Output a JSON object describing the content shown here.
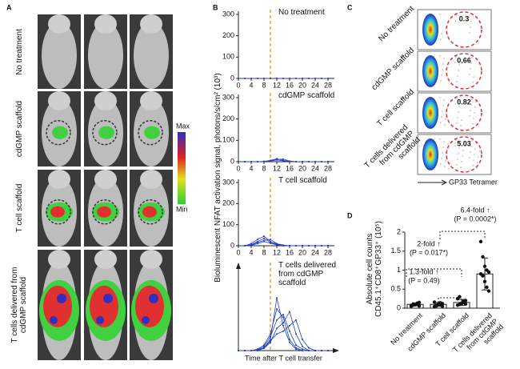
{
  "panel_labels": [
    "A",
    "B",
    "C",
    "D"
  ],
  "panel_a": {
    "rows": [
      "No treatment",
      "cdGMP scaffold",
      "T cell scaffold",
      "T cells delivered from cdGMP scaffold"
    ],
    "scale_max": "Max",
    "scale_min": "Min"
  },
  "panel_b": {
    "ylabel": "Bioluminescent NFAT activation signal, photons/s/cm² (10³)",
    "xlabel": "Time after T cell transfer"
  },
  "panel_c": {
    "rows": [
      "No treatment",
      "cdGMP scaffold",
      "T cell scaffold",
      "T cells delivered from cdGMP scaffold"
    ],
    "values": [
      "0.3",
      "0.66",
      "0.82",
      "5.03"
    ],
    "xlabel": "GP33 Tetramer"
  },
  "chart_data": [
    {
      "type": "line",
      "title": "No treatment",
      "x": [
        0,
        2,
        4,
        6,
        8,
        10,
        12,
        14,
        16,
        18,
        20,
        22,
        24,
        26,
        28
      ],
      "series": [
        {
          "color": "#2040c0",
          "values": [
            0,
            0,
            0,
            0,
            0,
            0,
            0,
            0,
            0,
            0,
            0,
            0,
            0,
            0,
            0
          ]
        },
        {
          "color": "#2040c0",
          "values": [
            0,
            0,
            0,
            0,
            0,
            0,
            1,
            0,
            0,
            0,
            0,
            0,
            0,
            0,
            0
          ]
        }
      ],
      "xlim": [
        0,
        30
      ],
      "ylim": [
        0,
        300
      ],
      "xticks": [
        0,
        4,
        8,
        12,
        16,
        20,
        24,
        28
      ],
      "yticks": [
        0,
        100,
        200,
        300
      ],
      "vline": 10,
      "vline_color": "#f0a030"
    },
    {
      "type": "line",
      "title": "cdGMP scaffold",
      "x": [
        0,
        2,
        4,
        6,
        8,
        10,
        12,
        14,
        16,
        18,
        20,
        22,
        24,
        26,
        28
      ],
      "series": [
        {
          "color": "#2040c0",
          "values": [
            0,
            0,
            0,
            0,
            0,
            3,
            8,
            4,
            1,
            0,
            0,
            0,
            0,
            0,
            0
          ]
        },
        {
          "color": "#2040c0",
          "values": [
            0,
            0,
            0,
            0,
            2,
            6,
            14,
            6,
            2,
            0,
            0,
            0,
            0,
            0,
            0
          ]
        },
        {
          "color": "#2040c0",
          "values": [
            0,
            0,
            0,
            0,
            0,
            4,
            10,
            12,
            3,
            0,
            0,
            0,
            0,
            0,
            0
          ]
        }
      ],
      "xlim": [
        0,
        30
      ],
      "ylim": [
        0,
        300
      ],
      "xticks": [
        0,
        4,
        8,
        12,
        16,
        20,
        24,
        28
      ],
      "yticks": [
        0,
        100,
        200,
        300
      ],
      "vline": 10,
      "vline_color": "#f0a030"
    },
    {
      "type": "line",
      "title": "T cell scaffold",
      "x": [
        0,
        2,
        4,
        6,
        8,
        10,
        12,
        14,
        16,
        18,
        20,
        22,
        24,
        26,
        28
      ],
      "series": [
        {
          "color": "#2040c0",
          "values": [
            0,
            0,
            5,
            20,
            35,
            15,
            5,
            0,
            0,
            0,
            0,
            0,
            0,
            0,
            0
          ]
        },
        {
          "color": "#2040c0",
          "values": [
            0,
            0,
            10,
            30,
            45,
            20,
            8,
            2,
            0,
            0,
            0,
            0,
            0,
            0,
            0
          ]
        },
        {
          "color": "#2040c0",
          "values": [
            0,
            0,
            3,
            15,
            25,
            30,
            10,
            3,
            0,
            0,
            0,
            0,
            0,
            0,
            0
          ]
        },
        {
          "color": "#2040c0",
          "values": [
            0,
            0,
            2,
            10,
            20,
            12,
            4,
            0,
            0,
            0,
            0,
            0,
            0,
            0,
            0
          ]
        }
      ],
      "xlim": [
        0,
        30
      ],
      "ylim": [
        0,
        300
      ],
      "xticks": [
        0,
        4,
        8,
        12,
        16,
        20,
        24,
        28
      ],
      "yticks": [
        0,
        100,
        200,
        300
      ],
      "vline": 10,
      "vline_color": "#f0a030"
    },
    {
      "type": "line",
      "title": "T cells delivered from cdGMP scaffold",
      "x": [
        0,
        2,
        4,
        6,
        8,
        10,
        12,
        14,
        16,
        18,
        20,
        22,
        24,
        26,
        28
      ],
      "series": [
        {
          "color": "#2040c0",
          "values": [
            0,
            0,
            0,
            5,
            20,
            60,
            150,
            120,
            40,
            10,
            0,
            0,
            0,
            0,
            0
          ]
        },
        {
          "color": "#2040c0",
          "values": [
            0,
            0,
            0,
            0,
            10,
            40,
            190,
            90,
            30,
            5,
            0,
            0,
            0,
            0,
            0
          ]
        },
        {
          "color": "#2040c0",
          "values": [
            0,
            0,
            0,
            3,
            15,
            50,
            110,
            130,
            70,
            20,
            5,
            0,
            0,
            0,
            0
          ]
        },
        {
          "color": "#2040c0",
          "values": [
            0,
            0,
            0,
            0,
            8,
            30,
            80,
            100,
            140,
            60,
            15,
            0,
            0,
            0,
            0
          ]
        },
        {
          "color": "#2040c0",
          "values": [
            0,
            0,
            0,
            2,
            10,
            35,
            60,
            70,
            90,
            110,
            40,
            10,
            0,
            0,
            0
          ]
        }
      ],
      "xlim": [
        0,
        30
      ],
      "ylim": [
        0,
        300
      ],
      "vline": 10,
      "vline_color": "#f0a030"
    },
    {
      "type": "bar",
      "categories": [
        "No treatment",
        "cdGMP scaffold",
        "T cell scaffold",
        "T cells delivered from cdGMP scaffold"
      ],
      "values": [
        0.1,
        0.1,
        0.15,
        0.9
      ],
      "errors": [
        0.04,
        0.05,
        0.08,
        0.42
      ],
      "points": [
        [
          0.05,
          0.08,
          0.1,
          0.12,
          0.15,
          0.07,
          0.11,
          0.09,
          0.13,
          0.06
        ],
        [
          0.04,
          0.06,
          0.09,
          0.1,
          0.12,
          0.16,
          0.08,
          0.11,
          0.14,
          0.05
        ],
        [
          0.08,
          0.1,
          0.12,
          0.15,
          0.2,
          0.25,
          0.3,
          0.13,
          0.18,
          0.11
        ],
        [
          1.75,
          1.35,
          1.1,
          1.0,
          0.95,
          0.9,
          0.85,
          0.7,
          0.55,
          0.45
        ]
      ],
      "color": "#ffffff",
      "point_color": "#111111",
      "ylabel": "Absolute cell counts CD45.1⁺CD8⁺GP33⁺ (10⁵)",
      "ylim": [
        0,
        2
      ],
      "yticks": [
        0,
        0.5,
        1,
        1.5,
        2
      ],
      "annotations": [
        {
          "fold": "1.3-fold ↑",
          "p": "(P = 0.49)"
        },
        {
          "fold": "2-fold ↑",
          "p": "(P = 0.017*)"
        },
        {
          "fold": "6.4-fold ↑",
          "p": "(P = 0.0002*)"
        }
      ]
    }
  ]
}
